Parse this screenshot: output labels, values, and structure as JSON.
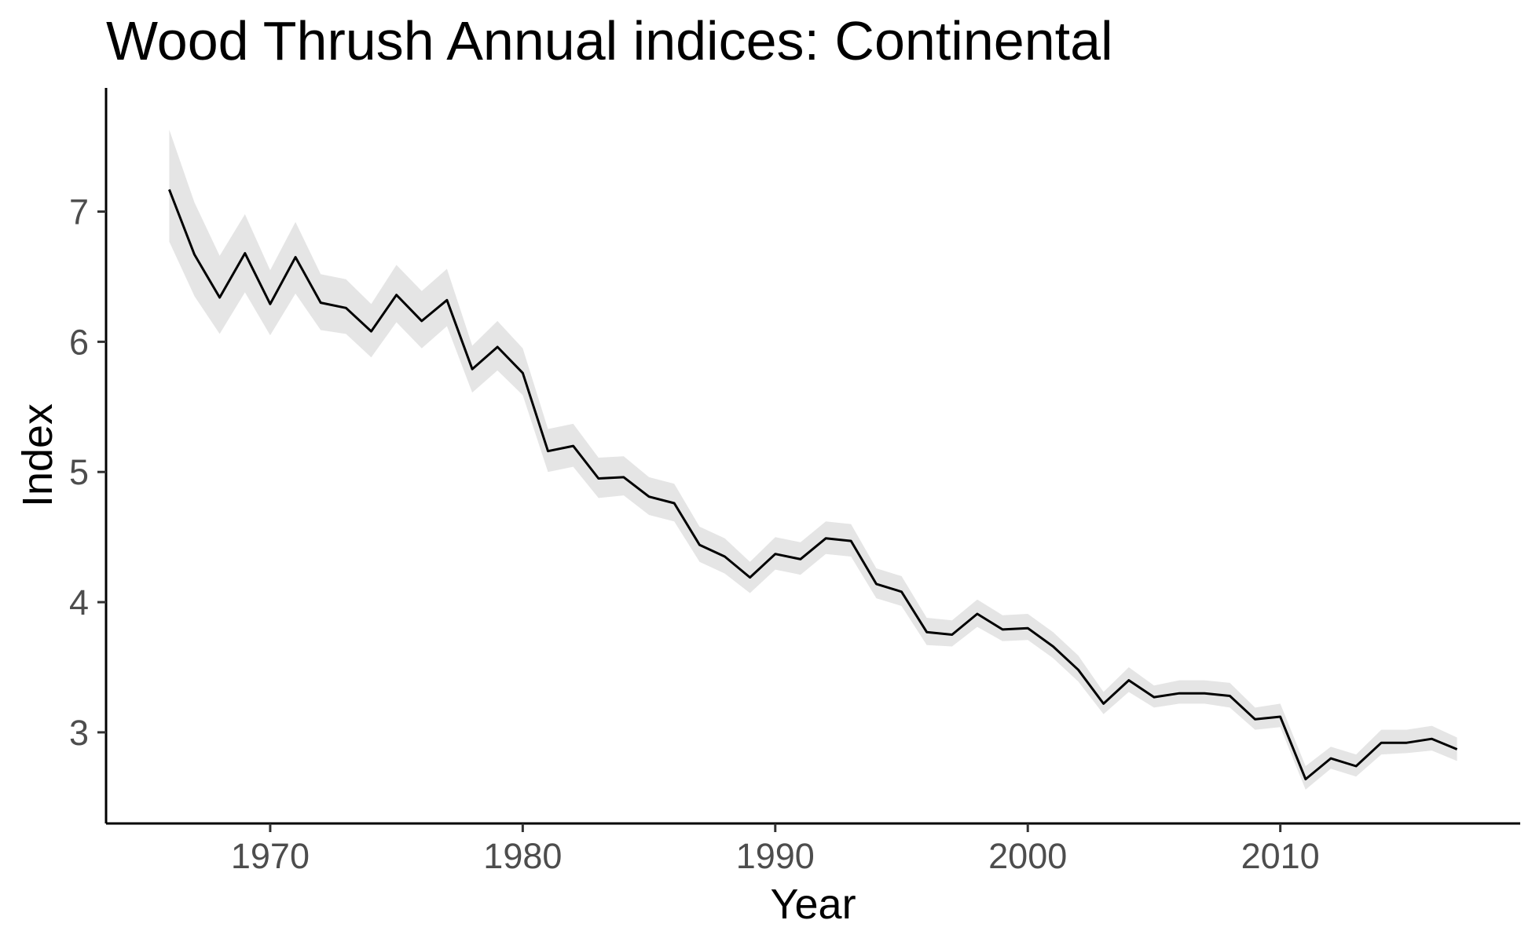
{
  "chart_data": {
    "type": "line",
    "title": "Wood Thrush Annual indices: Continental",
    "xlabel": "Year",
    "ylabel": "Index",
    "xlim": [
      1963.5,
      2019.5
    ],
    "ylim": [
      2.3,
      7.95
    ],
    "x_ticks": [
      1970,
      1980,
      1990,
      2000,
      2010
    ],
    "y_ticks": [
      3,
      4,
      5,
      6,
      7
    ],
    "grid": false,
    "legend": "none",
    "colors": {
      "line": "#000000",
      "band": "#e5e5e5",
      "ticks": "#4d4d4d"
    },
    "series": [
      {
        "x": [
          1966,
          1967,
          1968,
          1969,
          1970,
          1971,
          1972,
          1973,
          1974,
          1975,
          1976,
          1977,
          1978,
          1979,
          1980,
          1981,
          1982,
          1983,
          1984,
          1985,
          1986,
          1987,
          1988,
          1989,
          1990,
          1991,
          1992,
          1993,
          1994,
          1995,
          1996,
          1997,
          1998,
          1999,
          2000,
          2001,
          2002,
          2003,
          2004,
          2005,
          2006,
          2007,
          2008,
          2009,
          2010,
          2011,
          2012,
          2013,
          2014,
          2015,
          2016,
          2017
        ],
        "values": [
          7.17,
          6.67,
          6.34,
          6.68,
          6.29,
          6.65,
          6.3,
          6.26,
          6.08,
          6.36,
          6.16,
          6.32,
          5.79,
          5.96,
          5.76,
          5.16,
          5.2,
          4.95,
          4.96,
          4.81,
          4.76,
          4.44,
          4.35,
          4.19,
          4.37,
          4.33,
          4.49,
          4.47,
          4.14,
          4.08,
          3.77,
          3.75,
          3.91,
          3.79,
          3.8,
          3.66,
          3.48,
          3.22,
          3.4,
          3.27,
          3.3,
          3.3,
          3.28,
          3.1,
          3.12,
          2.64,
          2.8,
          2.74,
          2.92,
          2.92,
          2.95,
          2.87
        ],
        "lower": [
          6.77,
          6.35,
          6.06,
          6.38,
          6.05,
          6.37,
          6.09,
          6.06,
          5.88,
          6.15,
          5.95,
          6.12,
          5.61,
          5.78,
          5.59,
          5.0,
          5.04,
          4.8,
          4.82,
          4.67,
          4.62,
          4.31,
          4.22,
          4.07,
          4.25,
          4.21,
          4.37,
          4.35,
          4.03,
          3.97,
          3.67,
          3.66,
          3.81,
          3.7,
          3.71,
          3.57,
          3.39,
          3.14,
          3.31,
          3.19,
          3.22,
          3.22,
          3.19,
          3.02,
          3.04,
          2.56,
          2.72,
          2.66,
          2.83,
          2.84,
          2.86,
          2.78
        ],
        "upper": [
          7.63,
          7.07,
          6.66,
          6.98,
          6.55,
          6.92,
          6.52,
          6.48,
          6.29,
          6.59,
          6.39,
          6.56,
          5.97,
          6.16,
          5.95,
          5.33,
          5.37,
          5.11,
          5.12,
          4.96,
          4.91,
          4.58,
          4.49,
          4.31,
          4.5,
          4.46,
          4.62,
          4.6,
          4.26,
          4.2,
          3.88,
          3.86,
          4.02,
          3.9,
          3.91,
          3.77,
          3.59,
          3.31,
          3.5,
          3.36,
          3.4,
          3.4,
          3.38,
          3.19,
          3.22,
          2.74,
          2.89,
          2.83,
          3.02,
          3.02,
          3.05,
          2.96
        ]
      }
    ]
  }
}
